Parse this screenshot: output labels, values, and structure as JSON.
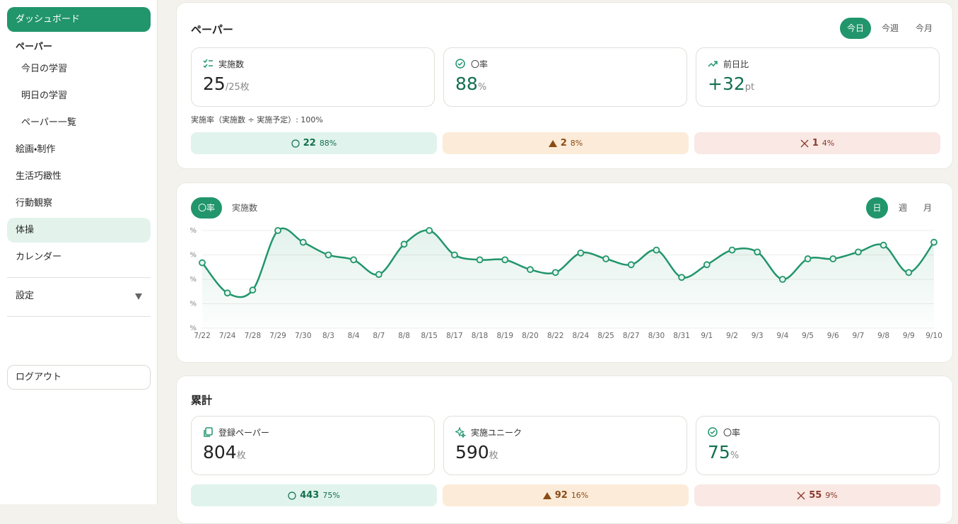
{
  "sidebar": {
    "dashboard": "ダッシュボード",
    "section": "ペーパー",
    "sub_items": [
      "今日の学習",
      "明日の学習",
      "ペーパー一覧"
    ],
    "items": [
      "絵画・制作",
      "生活巧緻性",
      "行動観察",
      "体操",
      "カレンダー"
    ],
    "settings": "設定",
    "logout": "ログアウト"
  },
  "paper_card": {
    "title": "ペーパー",
    "tabs": [
      "今日",
      "今週",
      "今月"
    ],
    "stats": [
      {
        "label": "実施数",
        "value": 25,
        "unit": "/25枚"
      },
      {
        "label": "〇率",
        "value": 88,
        "unit": "%"
      },
      {
        "label": "前日比",
        "value": "+32",
        "unit": "pt"
      }
    ],
    "note": "実施率（実施数 ÷ 実施予定）: 100%",
    "results": [
      {
        "count": 22,
        "percent": "88%"
      },
      {
        "count": 2,
        "percent": "8%"
      },
      {
        "count": 1,
        "percent": "4%"
      }
    ]
  },
  "chart_data": {
    "type": "line",
    "tabs": [
      "〇率",
      "実施数"
    ],
    "periods": [
      "日",
      "週",
      "月"
    ],
    "x": [
      "7/22",
      "7/24",
      "7/28",
      "7/29",
      "7/30",
      "8/3",
      "8/4",
      "8/7",
      "8/8",
      "8/15",
      "8/17",
      "8/18",
      "8/19",
      "8/20",
      "8/22",
      "8/24",
      "8/25",
      "8/27",
      "8/30",
      "8/31",
      "9/1",
      "9/2",
      "9/3",
      "9/4",
      "9/5",
      "9/6",
      "9/7",
      "9/8",
      "9/9",
      "9/10"
    ],
    "series": [
      {
        "color": "#21956b",
        "values": [
          67,
          36,
          39,
          100,
          88,
          75,
          70,
          55,
          86,
          100,
          75,
          70,
          70,
          60,
          57,
          77,
          71,
          65,
          80,
          52,
          65,
          80,
          78,
          50,
          71,
          71,
          78,
          85,
          57,
          88
        ]
      }
    ],
    "ylim": [
      0,
      100
    ],
    "yticks": [
      {
        "value": 0,
        "label": "%"
      },
      {
        "value": 25,
        "label": "%"
      },
      {
        "value": 50,
        "label": "%"
      },
      {
        "value": 75,
        "label": "%"
      },
      {
        "value": 100,
        "label": "%"
      }
    ],
    "grid": true
  },
  "total_card": {
    "title": "累計",
    "stats": [
      {
        "label": "登録ペーパー",
        "value": 804,
        "unit": "枚"
      },
      {
        "label": "実施ユニーク",
        "value": 590,
        "unit": "枚"
      },
      {
        "label": "〇率",
        "value": 75,
        "unit": "%"
      }
    ],
    "results": [
      {
        "count": 443,
        "percent": "75%"
      },
      {
        "count": 92,
        "percent": "16%"
      },
      {
        "count": 55,
        "percent": "9%"
      }
    ]
  }
}
